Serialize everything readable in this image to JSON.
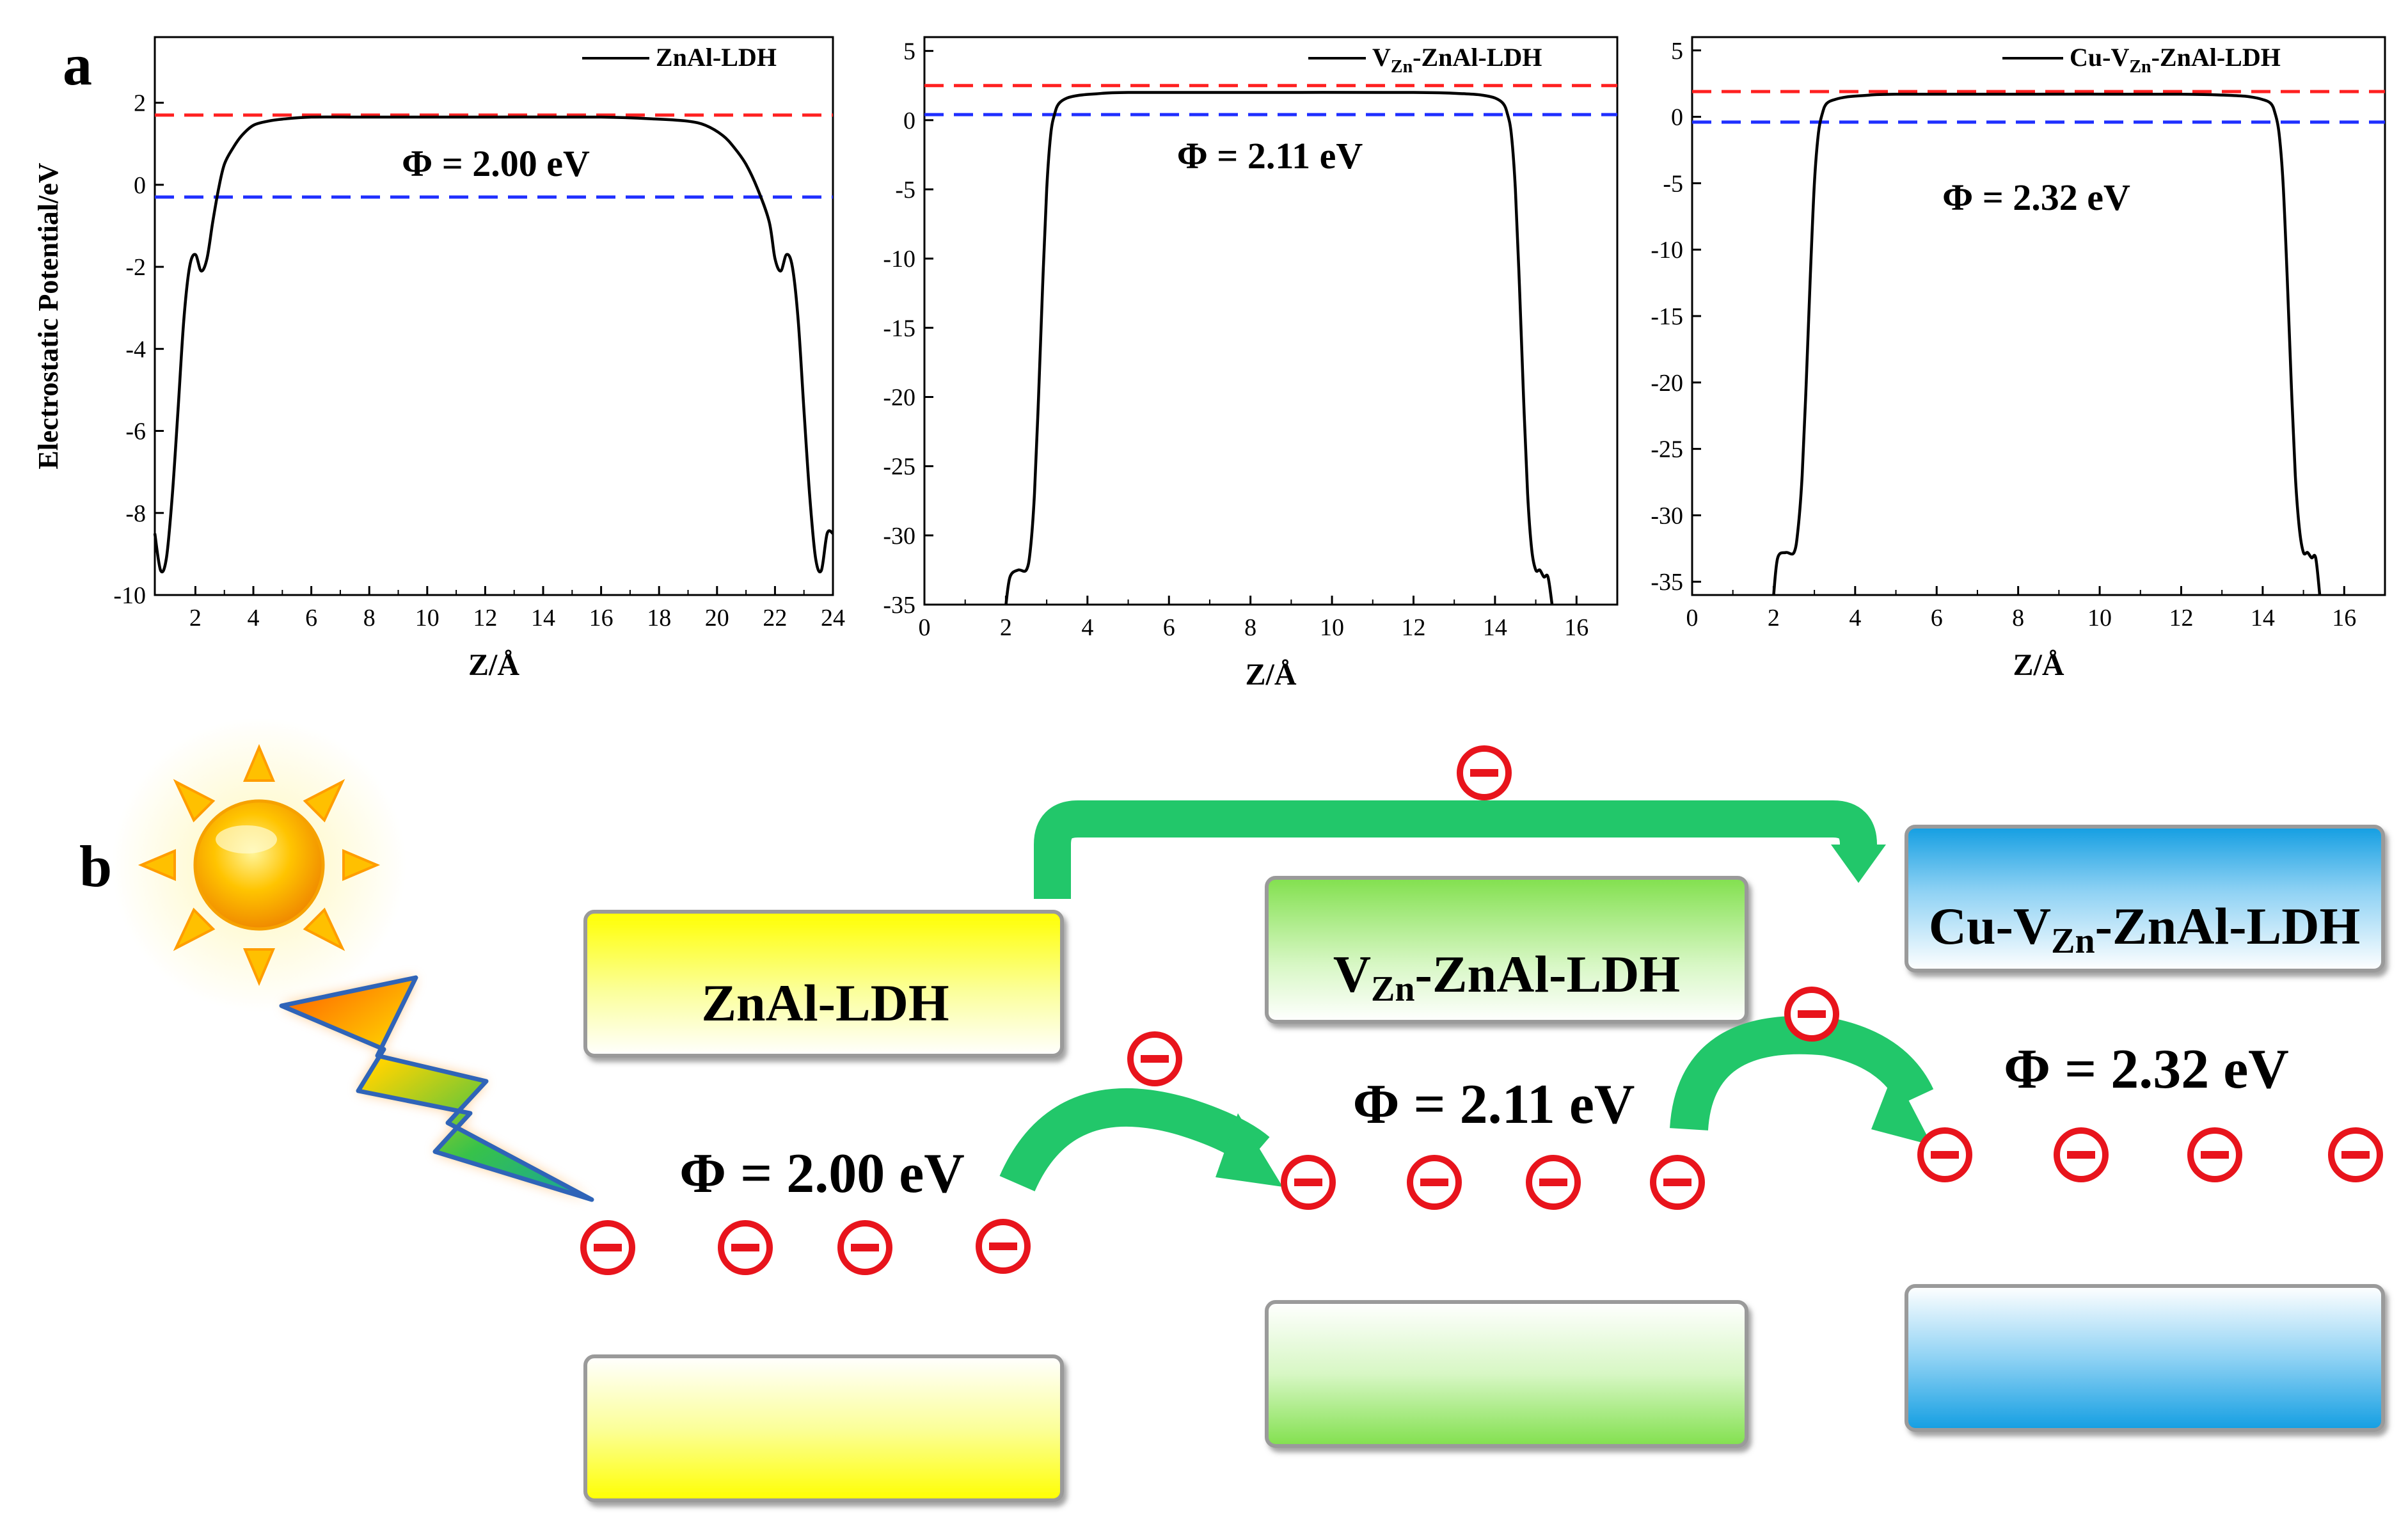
{
  "panel_labels": {
    "a": "a",
    "b": "b"
  },
  "colors": {
    "curve": "#000000",
    "vacuum_level": "#ff2020",
    "fermi_level": "#1f2fff",
    "arrow": "#22c76a",
    "electron": "#e8141c",
    "band_yellow": "#ffff00",
    "band_green": "#88e85a",
    "band_blue": "#1aa6e6",
    "sun": "#ffb800",
    "bolt": "#ff8a00"
  },
  "chart_data": [
    {
      "type": "line",
      "id": "znal",
      "xlabel": "Z/Å",
      "ylabel": "Electrostatic Potential/eV",
      "xlim": [
        0.6,
        24
      ],
      "ylim": [
        -10,
        3.6
      ],
      "xticks": [
        2,
        4,
        6,
        8,
        10,
        12,
        14,
        16,
        18,
        20,
        22,
        24
      ],
      "yticks": [
        -10,
        -8,
        -6,
        -4,
        -2,
        0,
        2
      ],
      "legend": {
        "pre": "ZnAl-LDH",
        "sub": "",
        "post": ""
      },
      "phi_label": "Φ = 2.00 eV",
      "vacuum_level": 1.7,
      "fermi_level": -0.3,
      "series": [
        {
          "name": "ZnAl-LDH",
          "x": [
            0.6,
            0.8,
            1.0,
            1.2,
            1.4,
            1.6,
            1.8,
            2.0,
            2.2,
            2.4,
            2.6,
            2.8,
            3.0,
            3.3,
            3.6,
            4.0,
            4.5,
            5.0,
            6.0,
            8.0,
            12.0,
            16.0,
            18.0,
            19.0,
            19.6,
            20.2,
            20.6,
            21.0,
            21.4,
            21.8,
            22.0,
            22.2,
            22.4,
            22.6,
            22.8,
            23.0,
            23.2,
            23.4,
            23.6,
            23.8,
            24.0
          ],
          "y": [
            -8.5,
            -9.4,
            -9.1,
            -7.6,
            -5.5,
            -3.3,
            -2.0,
            -1.7,
            -2.1,
            -1.8,
            -0.9,
            -0.1,
            0.5,
            0.9,
            1.2,
            1.45,
            1.55,
            1.6,
            1.65,
            1.65,
            1.65,
            1.65,
            1.6,
            1.55,
            1.45,
            1.2,
            0.9,
            0.5,
            -0.1,
            -0.9,
            -1.8,
            -2.1,
            -1.7,
            -2.0,
            -3.3,
            -5.5,
            -7.6,
            -9.1,
            -9.4,
            -8.5,
            -8.5
          ]
        }
      ]
    },
    {
      "type": "line",
      "id": "vzn",
      "xlabel": "Z/Å",
      "ylabel": "",
      "xlim": [
        0,
        17
      ],
      "ylim": [
        -35,
        6
      ],
      "xticks": [
        0,
        2,
        4,
        6,
        8,
        10,
        12,
        14,
        16
      ],
      "yticks": [
        -35,
        -30,
        -25,
        -20,
        -15,
        -10,
        -5,
        0,
        5
      ],
      "legend": {
        "pre": "V",
        "sub": "Zn",
        "post": "-ZnAl-LDH"
      },
      "phi_label": "Φ = 2.11 eV",
      "vacuum_level": 2.5,
      "fermi_level": 0.4,
      "series": [
        {
          "name": "VZn-ZnAl-LDH",
          "x": [
            2.0,
            2.1,
            2.3,
            2.5,
            2.6,
            2.7,
            2.8,
            2.9,
            3.0,
            3.1,
            3.2,
            3.3,
            3.5,
            3.8,
            4.2,
            5.0,
            8.0,
            12.0,
            13.3,
            13.7,
            14.0,
            14.2,
            14.3,
            14.4,
            14.5,
            14.6,
            14.7,
            14.8,
            14.9,
            15.0,
            15.1,
            15.2,
            15.3,
            15.4
          ],
          "y": [
            -35,
            -33.0,
            -32.5,
            -32.5,
            -31.0,
            -27.0,
            -20.0,
            -12.0,
            -5.0,
            -1.0,
            0.5,
            1.2,
            1.6,
            1.8,
            1.9,
            2.0,
            2.0,
            2.0,
            1.9,
            1.8,
            1.6,
            1.2,
            0.5,
            -1.0,
            -5.0,
            -12.0,
            -20.0,
            -27.0,
            -31.0,
            -32.5,
            -32.5,
            -33.0,
            -33.0,
            -35.0
          ]
        }
      ]
    },
    {
      "type": "line",
      "id": "cu",
      "xlabel": "Z/Å",
      "ylabel": "",
      "xlim": [
        0,
        17
      ],
      "ylim": [
        -36,
        6
      ],
      "xticks": [
        0,
        2,
        4,
        6,
        8,
        10,
        12,
        14,
        16
      ],
      "yticks": [
        -35,
        -30,
        -25,
        -20,
        -15,
        -10,
        -5,
        0,
        5
      ],
      "legend": {
        "pre": "Cu-V",
        "sub": "Zn",
        "post": "-ZnAl-LDH"
      },
      "phi_label": "Φ = 2.32 eV",
      "vacuum_level": 1.9,
      "fermi_level": -0.4,
      "series": [
        {
          "name": "Cu-VZn-ZnAl-LDH",
          "x": [
            2.0,
            2.1,
            2.3,
            2.5,
            2.6,
            2.7,
            2.8,
            2.9,
            3.0,
            3.1,
            3.2,
            3.3,
            3.5,
            3.8,
            4.2,
            5.0,
            8.0,
            12.0,
            13.3,
            13.7,
            14.0,
            14.2,
            14.3,
            14.4,
            14.5,
            14.6,
            14.7,
            14.8,
            14.9,
            15.0,
            15.1,
            15.2,
            15.3,
            15.4
          ],
          "y": [
            -36,
            -33.2,
            -32.8,
            -32.8,
            -31.0,
            -27.0,
            -20.0,
            -12.0,
            -5.0,
            -1.2,
            0.3,
            1.0,
            1.3,
            1.5,
            1.6,
            1.7,
            1.7,
            1.7,
            1.6,
            1.5,
            1.3,
            1.0,
            0.3,
            -1.2,
            -5.0,
            -12.0,
            -20.0,
            -27.0,
            -31.0,
            -32.8,
            -32.8,
            -33.2,
            -33.2,
            -36.0
          ]
        }
      ]
    }
  ],
  "diagram": {
    "bands": [
      {
        "id": "znal",
        "pre": "ZnAl-LDH",
        "sub": "",
        "post": ""
      },
      {
        "id": "vzn",
        "pre": "V",
        "sub": "Zn",
        "post": "-ZnAl-LDH"
      },
      {
        "id": "cu",
        "pre": "Cu-V",
        "sub": "Zn",
        "post": "-ZnAl-LDH"
      }
    ],
    "phi_labels": [
      "Φ = 2.00 eV",
      "Φ = 2.11 eV",
      "Φ = 2.32 eV"
    ]
  }
}
